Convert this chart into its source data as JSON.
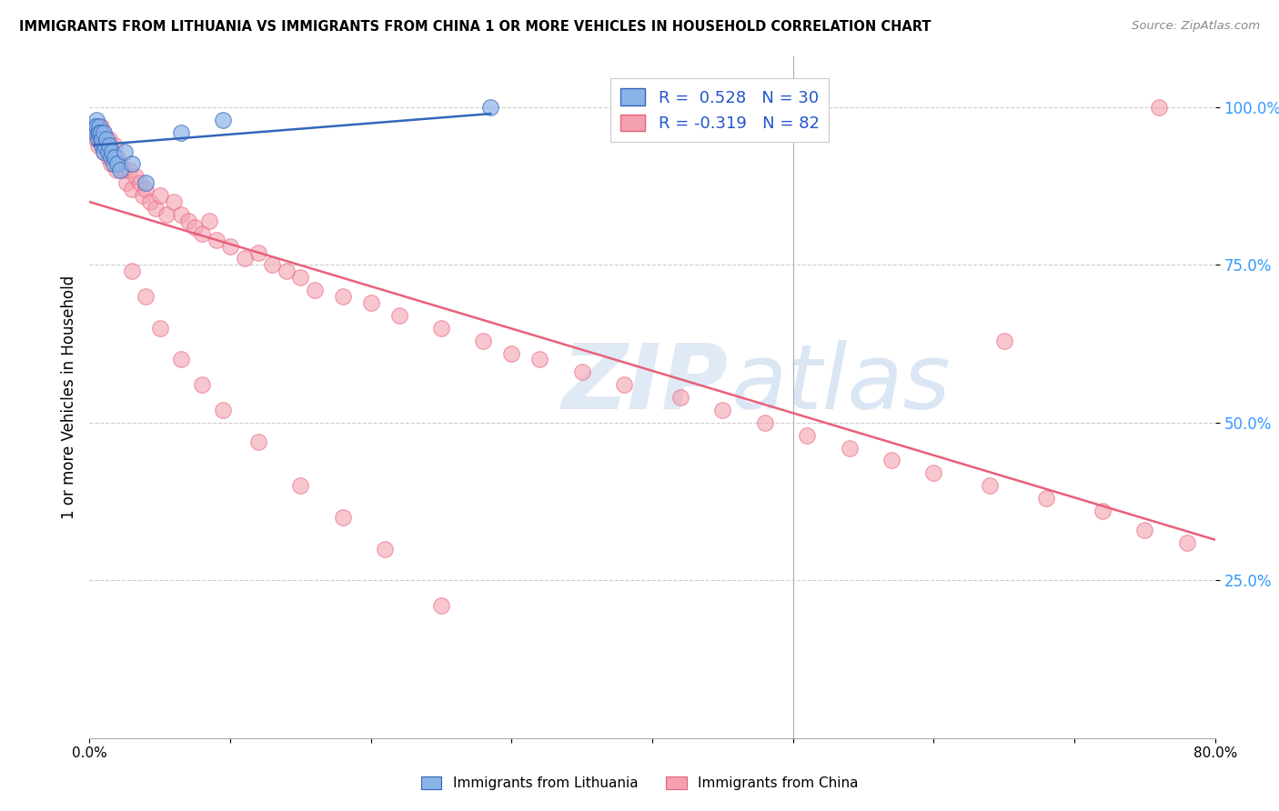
{
  "title": "IMMIGRANTS FROM LITHUANIA VS IMMIGRANTS FROM CHINA 1 OR MORE VEHICLES IN HOUSEHOLD CORRELATION CHART",
  "source": "Source: ZipAtlas.com",
  "ylabel": "1 or more Vehicles in Household",
  "xlim": [
    0.0,
    0.8
  ],
  "ylim": [
    0.0,
    1.08
  ],
  "legend_R1": "0.528",
  "legend_N1": "30",
  "legend_R2": "-0.319",
  "legend_N2": "82",
  "color_blue": "#8ab4e8",
  "color_pink": "#f4a0b0",
  "line_color_blue": "#3366BB",
  "line_color_pink": "#e8607a",
  "blue_scatter_x": [
    0.003,
    0.004,
    0.005,
    0.005,
    0.006,
    0.006,
    0.007,
    0.007,
    0.008,
    0.008,
    0.009,
    0.009,
    0.01,
    0.01,
    0.011,
    0.012,
    0.013,
    0.014,
    0.015,
    0.016,
    0.017,
    0.018,
    0.02,
    0.022,
    0.025,
    0.03,
    0.04,
    0.065,
    0.095,
    0.285
  ],
  "blue_scatter_y": [
    0.97,
    0.96,
    0.98,
    0.97,
    0.96,
    0.95,
    0.97,
    0.96,
    0.95,
    0.96,
    0.94,
    0.95,
    0.93,
    0.96,
    0.94,
    0.95,
    0.93,
    0.94,
    0.92,
    0.93,
    0.91,
    0.92,
    0.91,
    0.9,
    0.93,
    0.91,
    0.88,
    0.96,
    0.98,
    1.0
  ],
  "pink_scatter_x": [
    0.003,
    0.004,
    0.005,
    0.005,
    0.006,
    0.007,
    0.007,
    0.008,
    0.009,
    0.01,
    0.01,
    0.011,
    0.012,
    0.013,
    0.014,
    0.015,
    0.016,
    0.017,
    0.018,
    0.019,
    0.02,
    0.022,
    0.024,
    0.026,
    0.028,
    0.03,
    0.033,
    0.036,
    0.038,
    0.04,
    0.043,
    0.047,
    0.05,
    0.055,
    0.06,
    0.065,
    0.07,
    0.075,
    0.08,
    0.085,
    0.09,
    0.1,
    0.11,
    0.12,
    0.13,
    0.14,
    0.15,
    0.16,
    0.18,
    0.2,
    0.22,
    0.25,
    0.28,
    0.3,
    0.32,
    0.35,
    0.38,
    0.42,
    0.45,
    0.48,
    0.51,
    0.54,
    0.57,
    0.6,
    0.64,
    0.68,
    0.72,
    0.75,
    0.78,
    0.03,
    0.04,
    0.05,
    0.065,
    0.08,
    0.095,
    0.12,
    0.15,
    0.18,
    0.21,
    0.25,
    0.65,
    0.76
  ],
  "pink_scatter_y": [
    0.96,
    0.97,
    0.95,
    0.96,
    0.94,
    0.96,
    0.95,
    0.97,
    0.94,
    0.96,
    0.93,
    0.95,
    0.94,
    0.92,
    0.95,
    0.91,
    0.93,
    0.92,
    0.94,
    0.9,
    0.92,
    0.91,
    0.9,
    0.88,
    0.9,
    0.87,
    0.89,
    0.88,
    0.86,
    0.87,
    0.85,
    0.84,
    0.86,
    0.83,
    0.85,
    0.83,
    0.82,
    0.81,
    0.8,
    0.82,
    0.79,
    0.78,
    0.76,
    0.77,
    0.75,
    0.74,
    0.73,
    0.71,
    0.7,
    0.69,
    0.67,
    0.65,
    0.63,
    0.61,
    0.6,
    0.58,
    0.56,
    0.54,
    0.52,
    0.5,
    0.48,
    0.46,
    0.44,
    0.42,
    0.4,
    0.38,
    0.36,
    0.33,
    0.31,
    0.74,
    0.7,
    0.65,
    0.6,
    0.56,
    0.52,
    0.47,
    0.4,
    0.35,
    0.3,
    0.21,
    0.63,
    1.0
  ]
}
